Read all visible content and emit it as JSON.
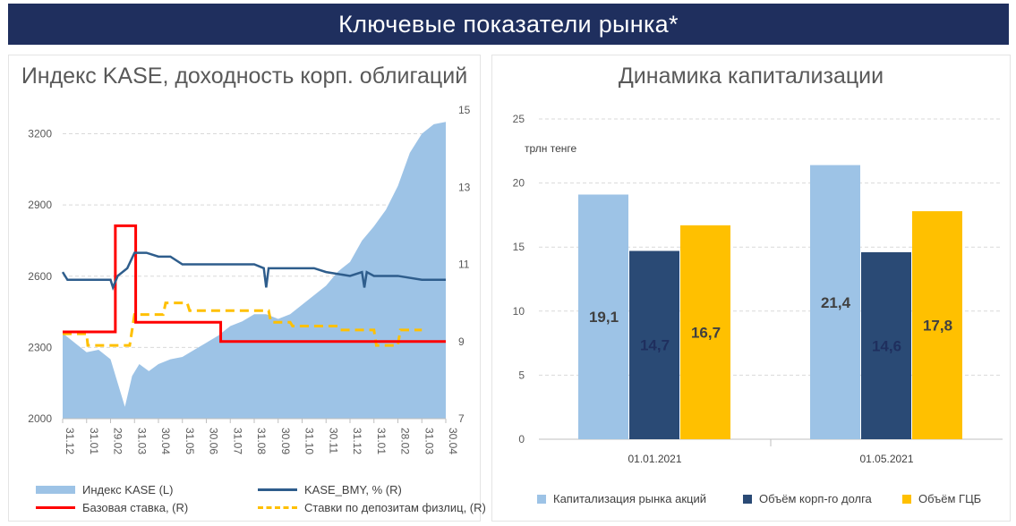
{
  "header": {
    "title": "Ключевые показатели рынка*"
  },
  "left_panel": {
    "title": "Индекс KASE, доходность корп. облигаций",
    "legend": {
      "kase": "Индекс KASE (L)",
      "bmy": "KASE_BMY, % (R)",
      "base_rate": "Базовая ставка, (R)",
      "deposit": "Ставки по депозитам физлиц, (R)"
    }
  },
  "right_panel": {
    "title": "Динамика капитализации",
    "unit": "трлн тенге",
    "legend": {
      "a": "Капитализация рынка акций",
      "b": "Объём корп-го долга",
      "c": "Объём ГЦБ"
    }
  },
  "chart_data": [
    {
      "type": "area",
      "title": "Индекс KASE, доходность корп. облигаций",
      "x_ticks": [
        "31.12",
        "31.01",
        "29.02",
        "31.03",
        "30.04",
        "31.05",
        "30.06",
        "31.07",
        "31.08",
        "30.09",
        "31.10",
        "30.11",
        "31.12",
        "31.01",
        "28.02",
        "31.03",
        "30.04"
      ],
      "y_left": {
        "ticks": [
          2000,
          2300,
          2600,
          2900,
          3200
        ],
        "range": [
          2000,
          3300
        ]
      },
      "y_right": {
        "ticks": [
          7,
          9,
          11,
          13,
          15
        ],
        "range": [
          7,
          15
        ]
      },
      "grid": true,
      "legend_position": "bottom",
      "series": [
        {
          "name": "Индекс KASE (L)",
          "axis": "left",
          "kind": "area",
          "color": "#9dc3e6",
          "points": [
            [
              0,
              2360
            ],
            [
              0.5,
              2320
            ],
            [
              1,
              2280
            ],
            [
              1.5,
              2290
            ],
            [
              2,
              2250
            ],
            [
              2.3,
              2150
            ],
            [
              2.6,
              2050
            ],
            [
              2.9,
              2180
            ],
            [
              3.2,
              2230
            ],
            [
              3.6,
              2200
            ],
            [
              4,
              2230
            ],
            [
              4.5,
              2250
            ],
            [
              5,
              2260
            ],
            [
              5.5,
              2290
            ],
            [
              6,
              2320
            ],
            [
              6.5,
              2350
            ],
            [
              7,
              2390
            ],
            [
              7.5,
              2410
            ],
            [
              8,
              2440
            ],
            [
              8.5,
              2440
            ],
            [
              9,
              2420
            ],
            [
              9.5,
              2440
            ],
            [
              10,
              2480
            ],
            [
              10.5,
              2520
            ],
            [
              11,
              2560
            ],
            [
              11.5,
              2620
            ],
            [
              12,
              2660
            ],
            [
              12.5,
              2750
            ],
            [
              13,
              2810
            ],
            [
              13.5,
              2880
            ],
            [
              14,
              2980
            ],
            [
              14.5,
              3120
            ],
            [
              15,
              3200
            ],
            [
              15.5,
              3240
            ],
            [
              16,
              3250
            ]
          ]
        },
        {
          "name": "KASE_BMY, % (R)",
          "axis": "right",
          "kind": "line",
          "color": "#2e5d8c",
          "points": [
            [
              0,
              10.8
            ],
            [
              0.2,
              10.6
            ],
            [
              1,
              10.6
            ],
            [
              2,
              10.6
            ],
            [
              2.1,
              10.4
            ],
            [
              2.3,
              10.7
            ],
            [
              2.7,
              10.9
            ],
            [
              3,
              11.3
            ],
            [
              3.5,
              11.3
            ],
            [
              4,
              11.2
            ],
            [
              4.5,
              11.2
            ],
            [
              5,
              11.0
            ],
            [
              6,
              11.0
            ],
            [
              7,
              11.0
            ],
            [
              7.5,
              11.0
            ],
            [
              8,
              11.0
            ],
            [
              8.4,
              10.9
            ],
            [
              8.5,
              10.4
            ],
            [
              8.6,
              10.9
            ],
            [
              9,
              10.9
            ],
            [
              10,
              10.9
            ],
            [
              10.5,
              10.9
            ],
            [
              11,
              10.8
            ],
            [
              12,
              10.7
            ],
            [
              12.5,
              10.8
            ],
            [
              12.6,
              10.4
            ],
            [
              12.7,
              10.8
            ],
            [
              13,
              10.7
            ],
            [
              14,
              10.7
            ],
            [
              15,
              10.6
            ],
            [
              16,
              10.6
            ]
          ]
        },
        {
          "name": "Базовая ставка, (R)",
          "axis": "right",
          "kind": "step",
          "color": "#ff0000",
          "points": [
            [
              0,
              9.25
            ],
            [
              2.2,
              9.25
            ],
            [
              2.2,
              12.0
            ],
            [
              3.05,
              12.0
            ],
            [
              3.05,
              9.5
            ],
            [
              6.6,
              9.5
            ],
            [
              6.6,
              9.0
            ],
            [
              16,
              9.0
            ]
          ]
        },
        {
          "name": "Ставки по депозитам физлиц, (R)",
          "axis": "right",
          "kind": "dashed",
          "color": "#ffc000",
          "points": [
            [
              0,
              9.2
            ],
            [
              1,
              9.2
            ],
            [
              1.05,
              8.9
            ],
            [
              2.8,
              8.9
            ],
            [
              3.0,
              9.7
            ],
            [
              4.2,
              9.7
            ],
            [
              4.3,
              10.0
            ],
            [
              5.2,
              10.0
            ],
            [
              5.3,
              9.8
            ],
            [
              8.6,
              9.8
            ],
            [
              8.7,
              9.5
            ],
            [
              9.5,
              9.5
            ],
            [
              9.6,
              9.4
            ],
            [
              11.5,
              9.4
            ],
            [
              11.6,
              9.3
            ],
            [
              13,
              9.3
            ],
            [
              13.1,
              8.9
            ],
            [
              14,
              8.9
            ],
            [
              14.1,
              9.3
            ],
            [
              15,
              9.3
            ]
          ]
        }
      ]
    },
    {
      "type": "bar",
      "title": "Динамика капитализации",
      "ylabel": "трлн тенге",
      "categories": [
        "01.01.2021",
        "01.05.2021"
      ],
      "ylim": [
        0,
        25
      ],
      "y_ticks": [
        0,
        5,
        10,
        15,
        20,
        25
      ],
      "grid": true,
      "legend_position": "bottom",
      "series": [
        {
          "name": "Капитализация рынка акций",
          "color": "#9dc3e6",
          "label_color": "#404040",
          "values": [
            19.1,
            21.4
          ],
          "labels": [
            "19,1",
            "21,4"
          ]
        },
        {
          "name": "Объём корп-го долга",
          "color": "#2a4a75",
          "label_color": "#1f2f5e",
          "values": [
            14.7,
            14.6
          ],
          "labels": [
            "14,7",
            "14,6"
          ]
        },
        {
          "name": "Объём ГЦБ",
          "color": "#ffc000",
          "label_color": "#404040",
          "values": [
            16.7,
            17.8
          ],
          "labels": [
            "16,7",
            "17,8"
          ]
        }
      ]
    }
  ]
}
